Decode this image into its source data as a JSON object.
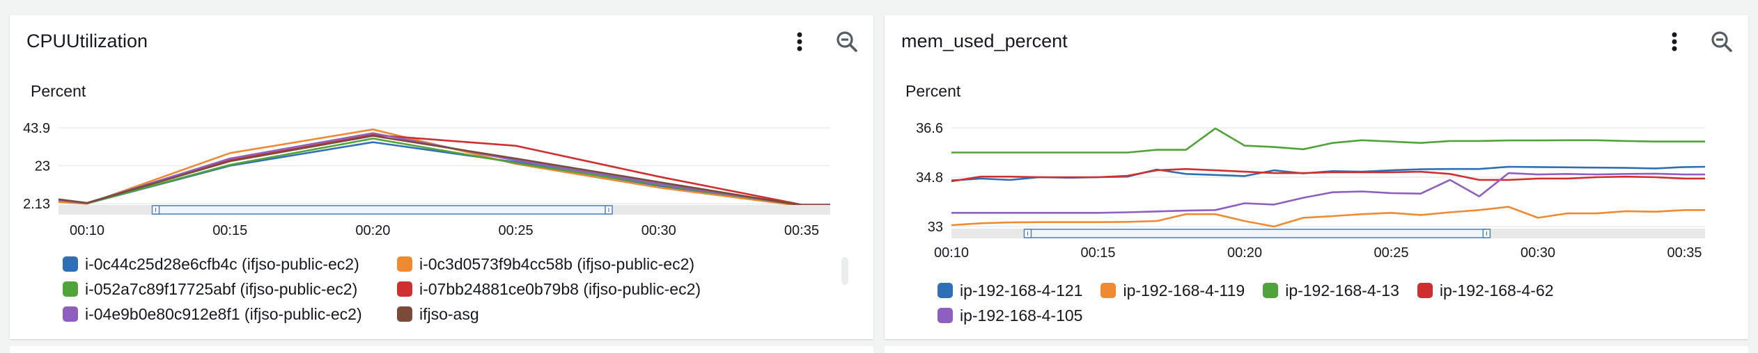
{
  "widgets": [
    {
      "title": "CPUUtilization",
      "more_icon": "vertical-ellipsis-icon",
      "zoom_icon": "zoom-out-icon",
      "chart_data": {
        "type": "line",
        "ylabel": "Percent",
        "ylim": [
          2.13,
          43.9
        ],
        "y_ticks": [
          "43.9",
          "23",
          "2.13"
        ],
        "y_tick_values": [
          43.9,
          23,
          2.13
        ],
        "x_ticks": [
          "00:10",
          "00:15",
          "00:20",
          "00:25",
          "00:30",
          "00:35"
        ],
        "x_tick_values": [
          10,
          15,
          20,
          25,
          30,
          35
        ],
        "x_unit": "minutes",
        "xlim": [
          9,
          36
        ],
        "grid": "horizontal",
        "legend_position": "bottom",
        "series": [
          {
            "name": "i-0c44c25d28e6cfb4c (ifjso-public-ec2)",
            "color": "#2f6fb5",
            "x": [
              9,
              10,
              15,
              20,
              25,
              30,
              35,
              36
            ],
            "values": [
              3.5,
              2.2,
              23.0,
              36.0,
              25.0,
              12.0,
              1.0,
              1.0
            ]
          },
          {
            "name": "i-0c3d0573f9b4cc58b (ifjso-public-ec2)",
            "color": "#f08a32",
            "x": [
              9,
              10,
              15,
              20,
              25,
              30,
              35,
              36
            ],
            "values": [
              3.0,
              2.0,
              30.0,
              43.0,
              24.0,
              11.0,
              0.8,
              0.8
            ]
          },
          {
            "name": "i-052a7c89f17725abf (ifjso-public-ec2)",
            "color": "#50a23a",
            "x": [
              9,
              10,
              15,
              20,
              25,
              30,
              35,
              36
            ],
            "values": [
              4.0,
              2.3,
              23.5,
              38.0,
              24.5,
              12.5,
              1.2,
              1.2
            ]
          },
          {
            "name": "i-07bb24881ce0b79b8 (ifjso-public-ec2)",
            "color": "#cf2f2f",
            "x": [
              9,
              10,
              15,
              20,
              25,
              30,
              35,
              36
            ],
            "values": [
              4.2,
              2.4,
              26.0,
              40.0,
              34.0,
              17.0,
              1.5,
              1.5
            ]
          },
          {
            "name": "i-04e9b0e80c912e8f1 (ifjso-public-ec2)",
            "color": "#8e5fbf",
            "x": [
              9,
              10,
              15,
              20,
              25,
              30,
              35,
              36
            ],
            "values": [
              4.0,
              2.4,
              27.0,
              41.0,
              26.0,
              13.0,
              1.3,
              1.3
            ]
          },
          {
            "name": "ifjso-asg",
            "color": "#7b4a38",
            "x": [
              9,
              10,
              15,
              20,
              25,
              30,
              35,
              36
            ],
            "values": [
              4.5,
              2.5,
              25.5,
              39.5,
              27.0,
              14.0,
              1.2,
              1.2
            ]
          }
        ]
      }
    },
    {
      "title": "mem_used_percent",
      "more_icon": "vertical-ellipsis-icon",
      "zoom_icon": "zoom-out-icon",
      "chart_data": {
        "type": "line",
        "ylabel": "Percent",
        "ylim": [
          33,
          36.6
        ],
        "y_ticks": [
          "36.6",
          "34.8",
          "33"
        ],
        "y_tick_values": [
          36.6,
          34.8,
          33
        ],
        "x_ticks": [
          "00:10",
          "00:15",
          "00:20",
          "00:25",
          "00:30",
          "00:35"
        ],
        "x_tick_values": [
          10,
          15,
          20,
          25,
          30,
          35
        ],
        "x_unit": "minutes",
        "xlim": [
          10,
          35.7
        ],
        "grid": "horizontal",
        "legend_position": "bottom",
        "series": [
          {
            "name": "ip-192-168-4-121",
            "color": "#2f6fb5",
            "x": [
              10,
              11,
              12,
              13,
              14,
              15,
              16,
              17,
              18,
              19,
              20,
              21,
              22,
              23,
              24,
              25,
              26,
              27,
              28,
              29,
              30,
              31,
              32,
              33,
              34,
              35,
              35.7
            ],
            "values": [
              34.68,
              34.75,
              34.7,
              34.8,
              34.78,
              34.8,
              34.82,
              35.08,
              34.92,
              34.88,
              34.84,
              35.05,
              34.94,
              35.02,
              35.0,
              35.05,
              35.09,
              35.1,
              35.1,
              35.18,
              35.17,
              35.16,
              35.15,
              35.14,
              35.12,
              35.17,
              35.18
            ]
          },
          {
            "name": "ip-192-168-4-119",
            "color": "#f08a32",
            "x": [
              10,
              11,
              12,
              13,
              14,
              15,
              16,
              17,
              18,
              19,
              20,
              21,
              22,
              23,
              24,
              25,
              26,
              27,
              28,
              29,
              30,
              31,
              32,
              33,
              34,
              35,
              35.7
            ],
            "values": [
              33.05,
              33.12,
              33.15,
              33.16,
              33.16,
              33.16,
              33.17,
              33.2,
              33.45,
              33.45,
              33.2,
              33.0,
              33.32,
              33.38,
              33.45,
              33.5,
              33.42,
              33.52,
              33.6,
              33.72,
              33.32,
              33.48,
              33.48,
              33.56,
              33.54,
              33.6,
              33.6
            ]
          },
          {
            "name": "ip-192-168-4-13",
            "color": "#50a23a",
            "x": [
              10,
              11,
              12,
              13,
              14,
              15,
              16,
              17,
              18,
              19,
              20,
              21,
              22,
              23,
              24,
              25,
              26,
              27,
              28,
              29,
              30,
              31,
              32,
              33,
              34,
              35,
              35.7
            ],
            "values": [
              35.7,
              35.7,
              35.7,
              35.7,
              35.7,
              35.7,
              35.7,
              35.8,
              35.8,
              36.58,
              35.95,
              35.9,
              35.82,
              36.05,
              36.15,
              36.1,
              36.05,
              36.12,
              36.12,
              36.14,
              36.14,
              36.15,
              36.15,
              36.12,
              36.1,
              36.1,
              36.1
            ]
          },
          {
            "name": "ip-192-168-4-62",
            "color": "#cf2f2f",
            "x": [
              10,
              11,
              12,
              13,
              14,
              15,
              16,
              17,
              18,
              19,
              20,
              21,
              22,
              23,
              24,
              25,
              26,
              27,
              28,
              29,
              30,
              31,
              32,
              33,
              34,
              35,
              35.7
            ],
            "values": [
              34.65,
              34.82,
              34.82,
              34.8,
              34.8,
              34.8,
              34.85,
              35.05,
              35.1,
              35.05,
              35.0,
              34.95,
              34.95,
              34.98,
              34.98,
              34.98,
              35.0,
              34.92,
              34.7,
              34.7,
              34.75,
              34.75,
              34.8,
              34.82,
              34.8,
              34.75,
              34.75
            ]
          },
          {
            "name": "ip-192-168-4-105",
            "color": "#8e5fbf",
            "x": [
              10,
              11,
              12,
              13,
              14,
              15,
              16,
              17,
              18,
              19,
              20,
              21,
              22,
              23,
              24,
              25,
              26,
              27,
              28,
              29,
              30,
              31,
              32,
              33,
              34,
              35,
              35.7
            ],
            "values": [
              33.5,
              33.5,
              33.5,
              33.5,
              33.5,
              33.5,
              33.52,
              33.55,
              33.58,
              33.6,
              33.85,
              33.8,
              34.05,
              34.25,
              34.28,
              34.22,
              34.2,
              34.7,
              34.1,
              34.95,
              34.9,
              34.92,
              34.9,
              34.92,
              34.93,
              34.9,
              34.9
            ]
          }
        ]
      }
    }
  ]
}
